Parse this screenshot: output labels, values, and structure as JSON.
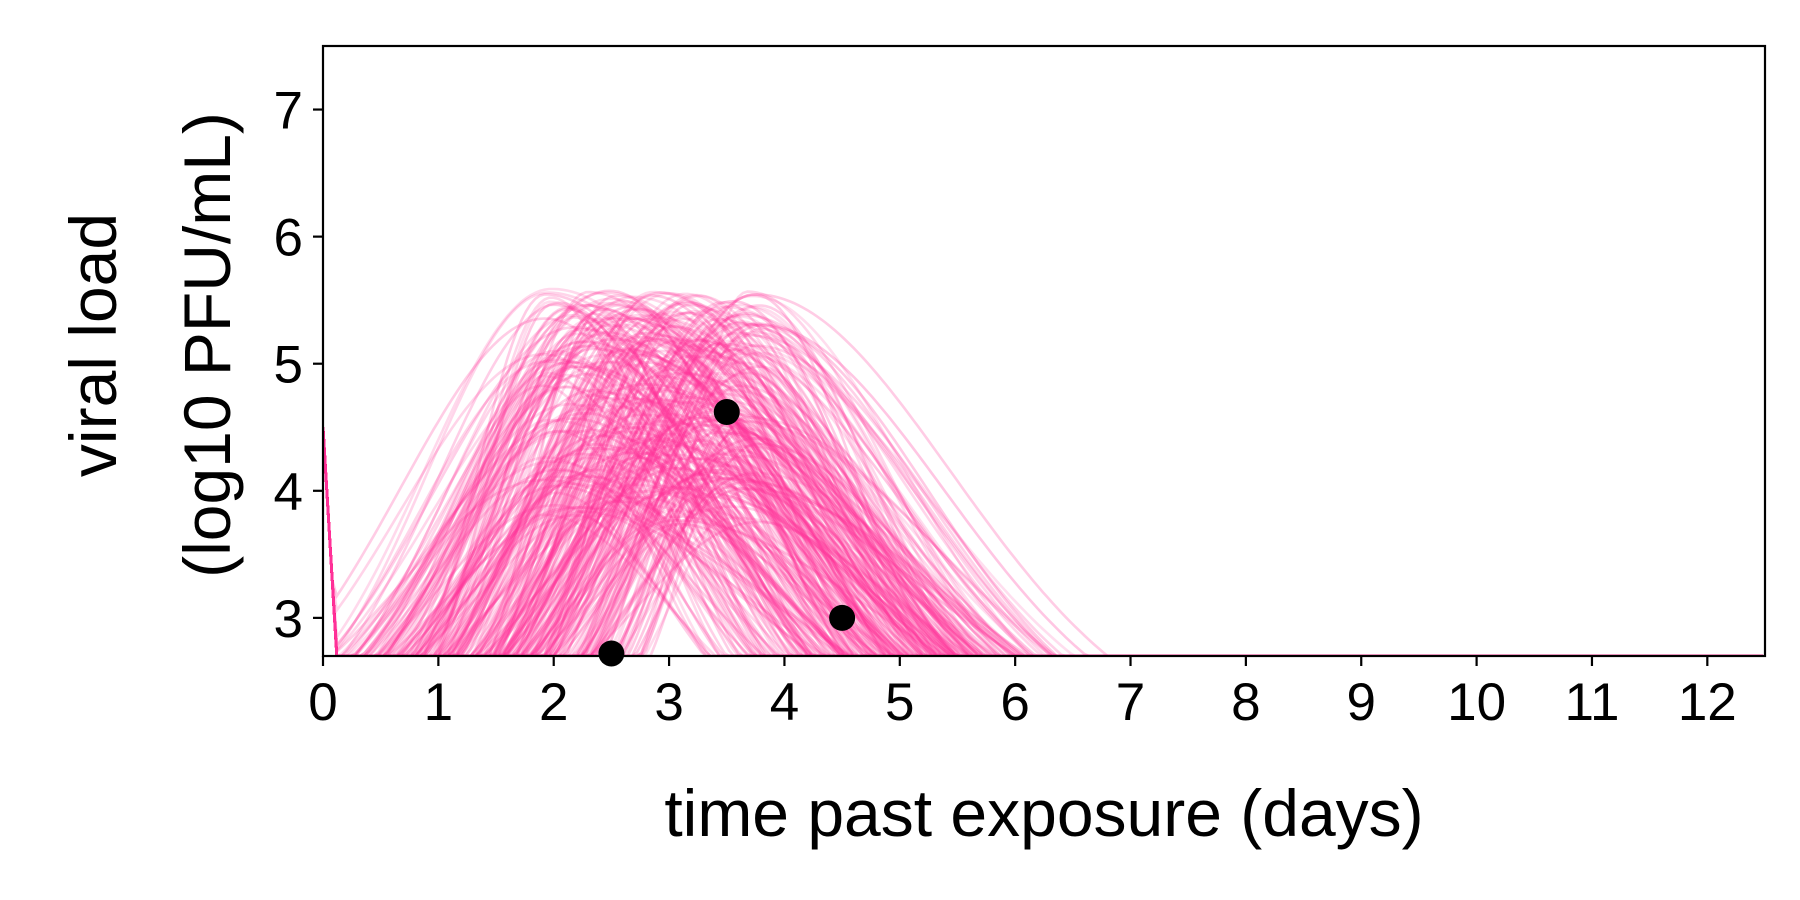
{
  "chart_data": {
    "type": "line",
    "title": "",
    "xlabel": "time past exposure (days)",
    "ylabel_lines": [
      "viral load",
      "(log10 PFU/mL)"
    ],
    "xlim": [
      0,
      12.5
    ],
    "ylim": [
      2.7,
      7.5
    ],
    "xticks": [
      "0",
      "1",
      "2",
      "3",
      "4",
      "5",
      "6",
      "7",
      "8",
      "9",
      "10",
      "11",
      "12"
    ],
    "yticks": [
      "3",
      "4",
      "5",
      "6",
      "7"
    ],
    "grid": false,
    "legend": "none",
    "colors": {
      "trajectory": "#ff3399",
      "observed": "#000000",
      "axis": "#000000"
    },
    "trajectory_ensemble": {
      "description_of_envelope": "many simulated viral load trajectories",
      "peak_time_range": [
        1.9,
        3.8
      ],
      "peak_value_range": [
        3.7,
        5.6
      ],
      "detection_floor": 2.7,
      "end_time_range": [
        4.2,
        7.7
      ]
    },
    "observed_points": [
      {
        "x": 2.5,
        "y": 2.72
      },
      {
        "x": 3.5,
        "y": 4.62
      },
      {
        "x": 4.5,
        "y": 3.0
      }
    ]
  }
}
